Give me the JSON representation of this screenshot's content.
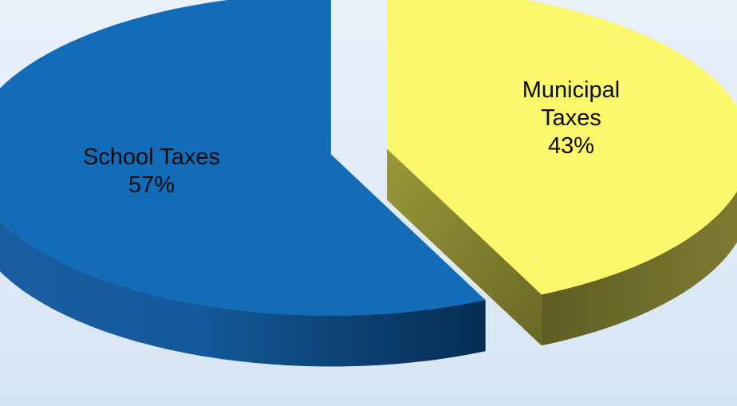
{
  "chart_data": {
    "type": "pie",
    "style": "3d-exploded",
    "slices": [
      {
        "label_lines": [
          "Municipal",
          "Taxes"
        ],
        "value": 43,
        "value_label": "43%",
        "color": "#faf86a",
        "side_color": "#77752e"
      },
      {
        "label_lines": [
          "School Taxes"
        ],
        "value": 57,
        "value_label": "57%",
        "color": "#136cb8",
        "side_color": "#0d4f85"
      }
    ],
    "background": "#dce9f7"
  }
}
